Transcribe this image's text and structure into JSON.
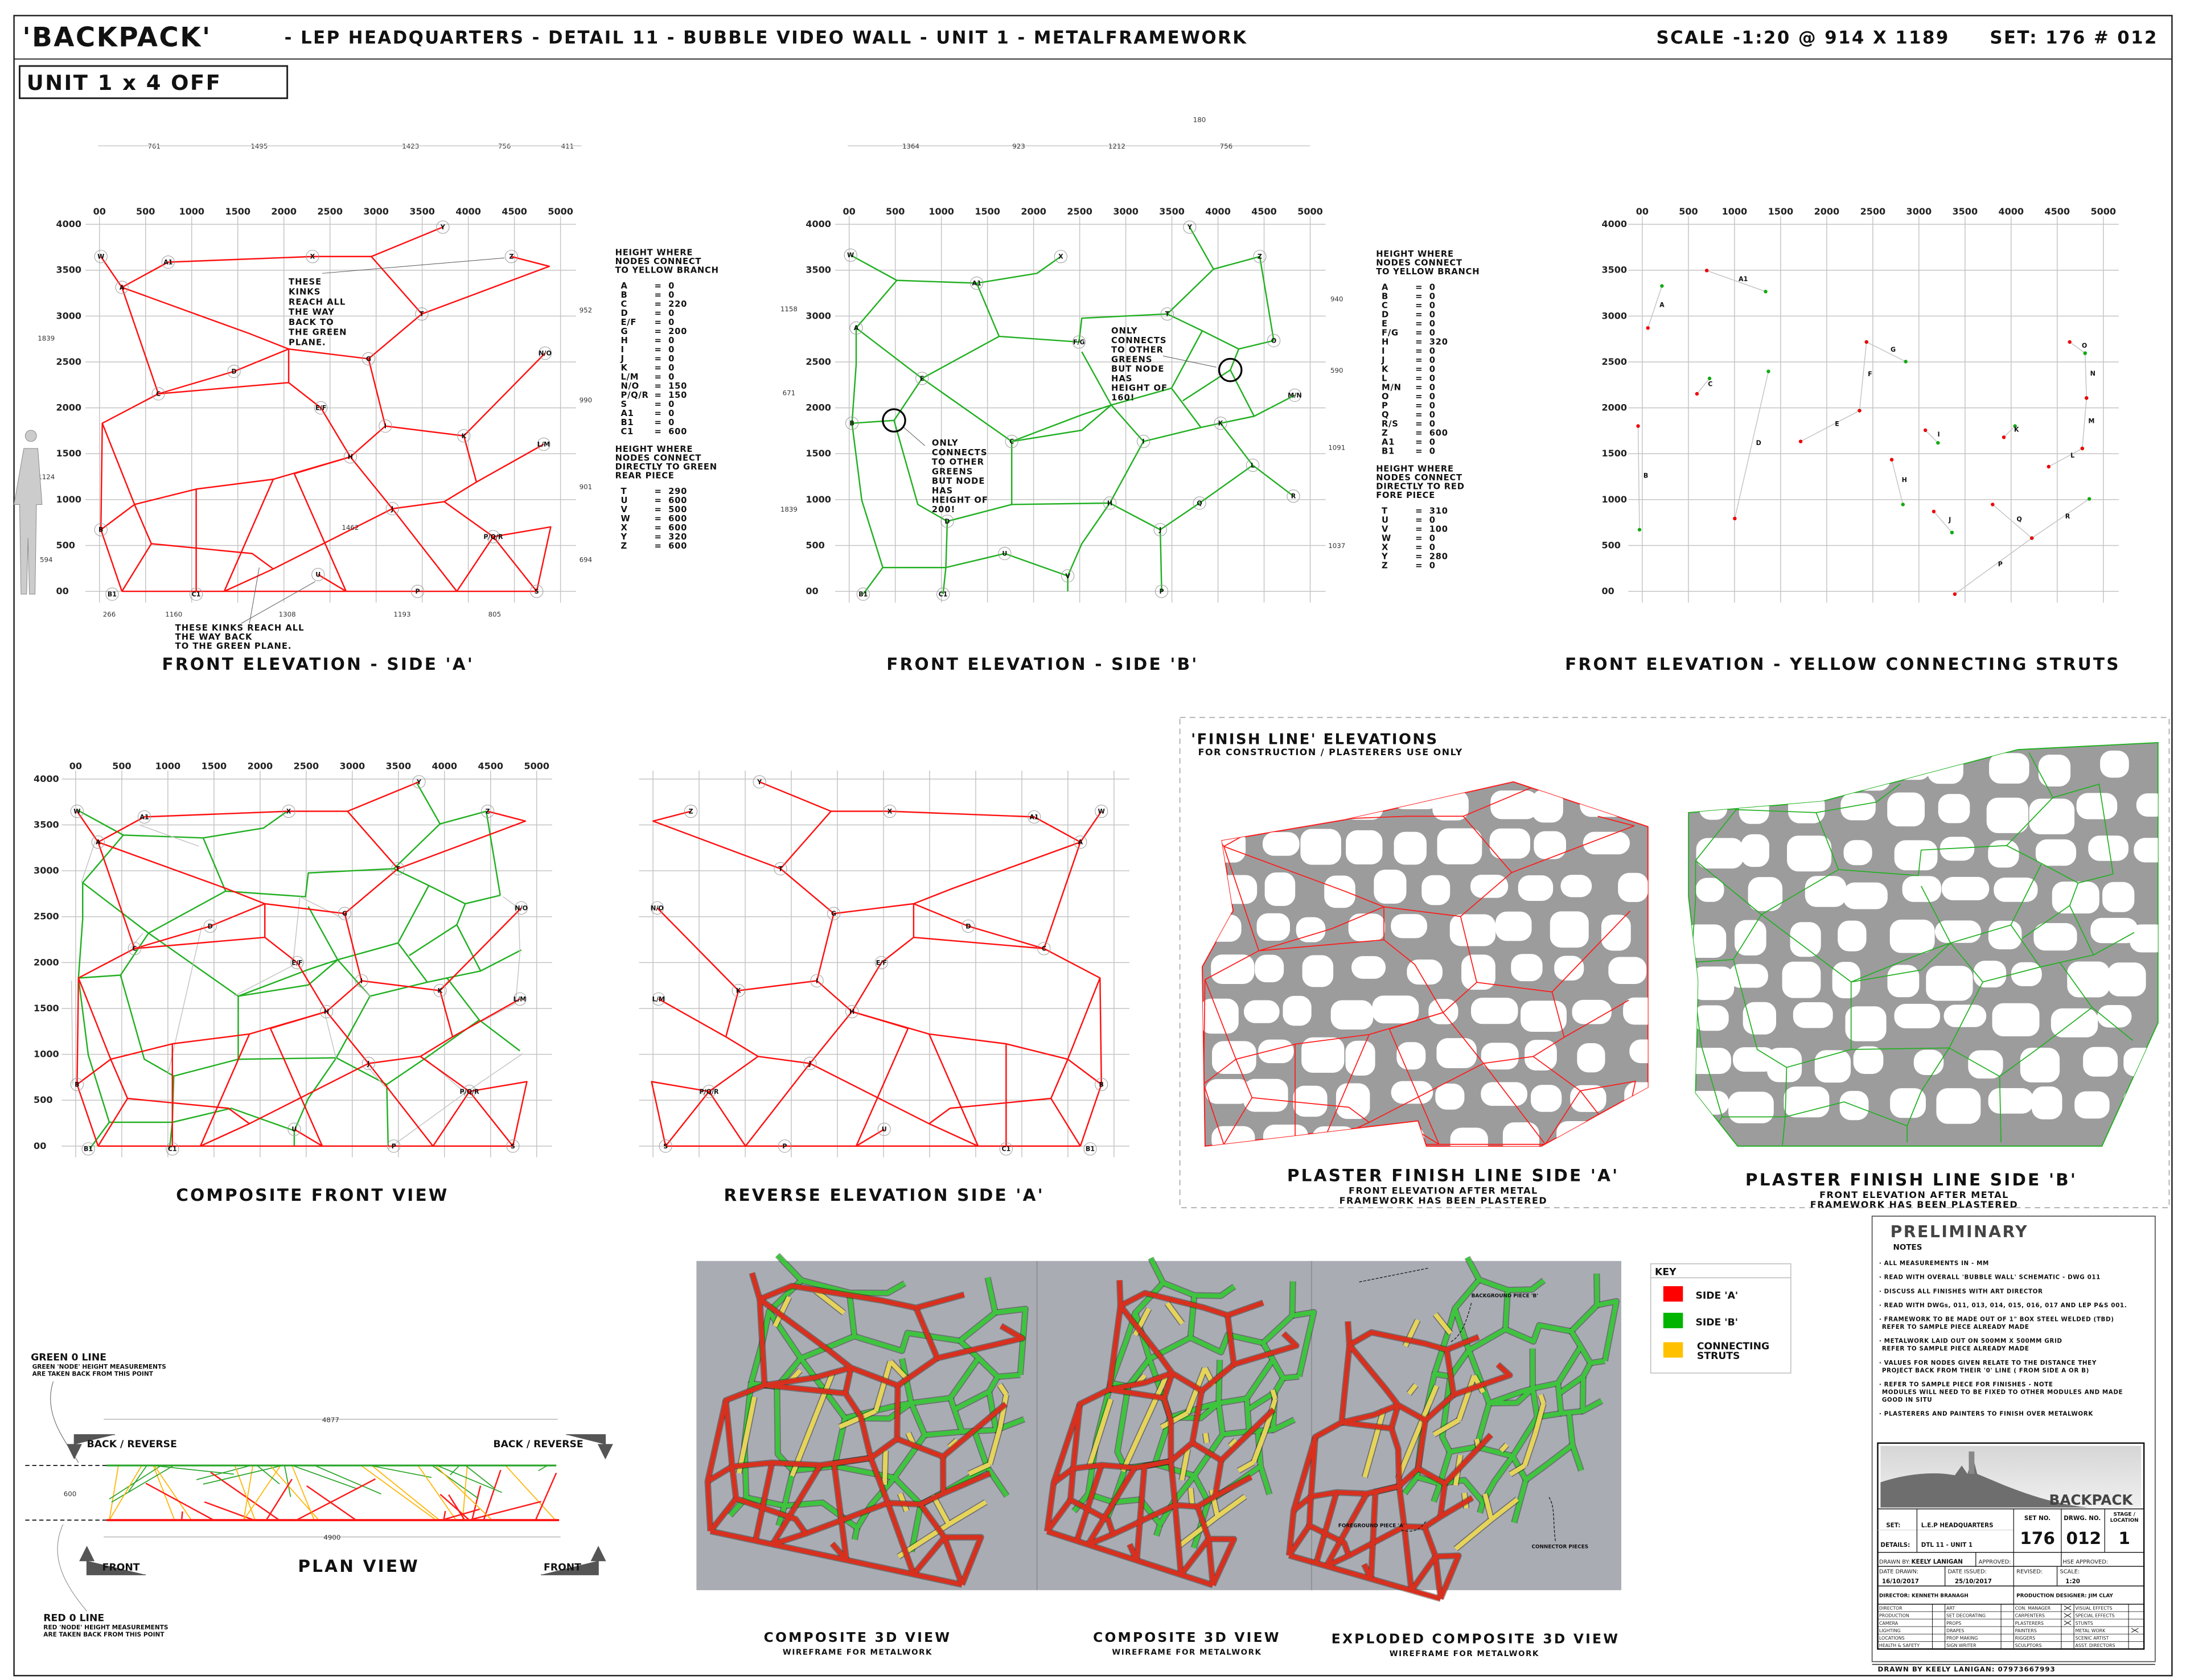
{
  "header": {
    "project": "'BACKPACK'",
    "title": "- LEP HEADQUARTERS - DETAIL 11 - BUBBLE VIDEO WALL - UNIT 1 - METALFRAMEWORK",
    "scale": "SCALE -1:20 @ 914  X  1189",
    "set": "SET: 176  # 012"
  },
  "unit_label": "UNIT 1 x 4 OFF",
  "grid": {
    "x_labels": [
      "00",
      "500",
      "1000",
      "1500",
      "2000",
      "2500",
      "3000",
      "3500",
      "4000",
      "4500",
      "5000"
    ],
    "y_labels": [
      "00",
      "500",
      "1000",
      "1500",
      "2000",
      "2500",
      "3000",
      "3500",
      "4000"
    ]
  },
  "side_a": {
    "caption": "FRONT ELEVATION -  SIDE 'A'",
    "dims_top": [
      "761",
      "1495",
      "1423",
      "756",
      "411"
    ],
    "dims_bottom": [
      "266",
      "1160",
      "1308",
      "1193",
      "805"
    ],
    "dims_left": [
      "1839",
      "1124",
      "594"
    ],
    "dims_right": [
      "952",
      "990",
      "901",
      "694"
    ],
    "dim_mid": "1462",
    "annotation_top": [
      "THESE",
      "KINKS",
      "REACH ALL",
      "THE WAY",
      "BACK TO",
      "THE GREEN",
      "PLANE."
    ],
    "annotation_bottom": [
      "THESE KINKS REACH ALL",
      "THE WAY BACK",
      "TO THE GREEN PLANE."
    ],
    "node_labels": [
      "W",
      "A",
      "A1",
      "X",
      "Y",
      "Z",
      "T",
      "G",
      "C",
      "E/F",
      "I",
      "K",
      "N/O",
      "L/M",
      "H",
      "J",
      "P/Q/R",
      "S",
      "P",
      "U",
      "B",
      "B1",
      "C1",
      "D"
    ],
    "table": {
      "yellow_heading": [
        "HEIGHT WHERE",
        "NODES CONNECT",
        "TO YELLOW BRANCH"
      ],
      "yellow": [
        [
          "A",
          "0"
        ],
        [
          "B",
          "0"
        ],
        [
          "C",
          "220"
        ],
        [
          "D",
          "0"
        ],
        [
          "E/F",
          "0"
        ],
        [
          "G",
          "200"
        ],
        [
          "H",
          "0"
        ],
        [
          "I",
          "0"
        ],
        [
          "J",
          "0"
        ],
        [
          "K",
          "0"
        ],
        [
          "L/M",
          "0"
        ],
        [
          "N/O",
          "150"
        ],
        [
          "P/Q/R",
          "150"
        ],
        [
          "S",
          "0"
        ],
        [
          "A1",
          "0"
        ],
        [
          "B1",
          "0"
        ],
        [
          "C1",
          "600"
        ]
      ],
      "other_heading": [
        "HEIGHT WHERE",
        "NODES CONNECT",
        "DIRECTLY TO GREEN",
        "REAR PIECE"
      ],
      "other": [
        [
          "T",
          "290"
        ],
        [
          "U",
          "600"
        ],
        [
          "V",
          "500"
        ],
        [
          "W",
          "600"
        ],
        [
          "X",
          "600"
        ],
        [
          "Y",
          "320"
        ],
        [
          "Z",
          "600"
        ]
      ]
    }
  },
  "side_b": {
    "caption": "FRONT ELEVATION -  SIDE 'B'",
    "dims_top": [
      "1364",
      "923",
      "1212",
      "756"
    ],
    "dim_offset": "180",
    "dims_left": [
      "1158",
      "671",
      "1839"
    ],
    "dims_right": [
      "940",
      "590",
      "1091",
      "1037"
    ],
    "annotation_left": [
      "ONLY",
      "CONNECTS",
      "TO OTHER",
      "GREENS",
      "BUT NODE",
      "HAS",
      "HEIGHT OF",
      "200!"
    ],
    "annotation_right": [
      "ONLY",
      "CONNECTS",
      "TO OTHER",
      "GREENS",
      "BUT NODE",
      "HAS",
      "HEIGHT OF",
      "160!"
    ],
    "node_labels": [
      "W",
      "X",
      "Y",
      "Z",
      "A1",
      "A",
      "T",
      "F/G",
      "O",
      "E",
      "M/N",
      "B",
      "K",
      "C",
      "I",
      "L",
      "R",
      "H",
      "Q",
      "J",
      "D",
      "V",
      "B1",
      "C1",
      "P",
      "U"
    ],
    "table": {
      "yellow_heading": [
        "HEIGHT WHERE",
        "NODES CONNECT",
        "TO YELLOW BRANCH"
      ],
      "yellow": [
        [
          "A",
          "0"
        ],
        [
          "B",
          "0"
        ],
        [
          "C",
          "0"
        ],
        [
          "D",
          "0"
        ],
        [
          "E",
          "0"
        ],
        [
          "F/G",
          "0"
        ],
        [
          "H",
          "320"
        ],
        [
          "I",
          "0"
        ],
        [
          "J",
          "0"
        ],
        [
          "K",
          "0"
        ],
        [
          "L",
          "0"
        ],
        [
          "M/N",
          "0"
        ],
        [
          "O",
          "0"
        ],
        [
          "P",
          "0"
        ],
        [
          "Q",
          "0"
        ],
        [
          "R/S",
          "0"
        ],
        [
          "Z",
          "600"
        ],
        [
          "A1",
          "0"
        ],
        [
          "B1",
          "0"
        ]
      ],
      "other_heading": [
        "HEIGHT WHERE",
        "NODES CONNECT",
        "DIRECTLY TO RED",
        "FORE PIECE"
      ],
      "other": [
        [
          "T",
          "310"
        ],
        [
          "U",
          "0"
        ],
        [
          "V",
          "100"
        ],
        [
          "W",
          "0"
        ],
        [
          "X",
          "0"
        ],
        [
          "Y",
          "280"
        ],
        [
          "Z",
          "0"
        ]
      ]
    }
  },
  "yellow_struts": {
    "caption": "FRONT ELEVATION -  YELLOW CONNECTING STRUTS",
    "labels": [
      "A",
      "A1",
      "B",
      "C",
      "D",
      "E",
      "F",
      "G",
      "H",
      "I",
      "J",
      "K",
      "L",
      "M",
      "N",
      "O",
      "P",
      "Q",
      "R"
    ]
  },
  "composite": {
    "caption": "COMPOSITE FRONT VIEW"
  },
  "reverse": {
    "caption": "REVERSE ELEVATION SIDE 'A'"
  },
  "finish": {
    "title": "'FINISH LINE' ELEVATIONS",
    "subtitle": "FOR CONSTRUCTION / PLASTERERS USE ONLY",
    "side_a": {
      "caption": "PLASTER FINISH LINE SIDE 'A'",
      "sub": [
        "FRONT ELEVATION AFTER METAL",
        "FRAMEWORK HAS BEEN PLASTERED"
      ]
    },
    "side_b": {
      "caption": "PLASTER FINISH LINE SIDE 'B'",
      "sub": [
        "FRONT ELEVATION AFTER METAL",
        "FRAMEWORK HAS BEEN PLASTERED"
      ]
    }
  },
  "plan": {
    "caption": "PLAN VIEW",
    "green_title": "GREEN 0 LINE",
    "green_note": [
      "GREEN 'NODE' HEIGHT MEASUREMENTS",
      "ARE TAKEN BACK FROM THIS POINT"
    ],
    "red_title": "RED 0 LINE",
    "red_note": [
      "RED 'NODE' HEIGHT MEASUREMENTS",
      "ARE TAKEN BACK FROM THIS POINT"
    ],
    "back_label": "BACK / REVERSE",
    "front_label": "FRONT",
    "dim_top": "4877",
    "dim_bottom": "4900",
    "dim_depth": "600"
  },
  "views3d": [
    {
      "caption": "COMPOSITE 3D VIEW",
      "sub": "WIREFRAME FOR METALWORK"
    },
    {
      "caption": "COMPOSITE 3D VIEW",
      "sub": "WIREFRAME FOR METALWORK"
    },
    {
      "caption": "EXPLODED COMPOSITE 3D VIEW",
      "sub": "WIREFRAME FOR METALWORK"
    }
  ],
  "view3d_annotations": {
    "background": "BACKGROUND PIECE 'B'",
    "foreground": "FOREGROUND PIECE 'A'",
    "connector": "CONNECTOR PIECES"
  },
  "key": {
    "title": "KEY",
    "items": [
      {
        "label": "SIDE 'A'",
        "color": "#ff0000"
      },
      {
        "label": "SIDE 'B'",
        "color": "#00b400"
      },
      {
        "label": "CONNECTING STRUTS",
        "color": "#ffc000"
      }
    ]
  },
  "notes": {
    "status": "PRELIMINARY",
    "heading": "NOTES",
    "items": [
      [
        "ALL MEASUREMENTS IN - MM"
      ],
      [
        "READ WITH OVERALL 'BUBBLE WALL' SCHEMATIC - DWG 011"
      ],
      [
        "DISCUSS ALL FINISHES WITH ART DIRECTOR"
      ],
      [
        "READ WITH DWGs, 011, 013, 014, 015, 016, 017 AND LEP P&S 001."
      ],
      [
        "FRAMEWORK TO BE MADE OUT OF 1\" BOX STEEL WELDED (TBD)",
        "REFER TO SAMPLE PIECE ALREADY MADE"
      ],
      [
        "METALWORK LAID OUT ON 500MM X 500MM GRID",
        "REFER TO SAMPLE PIECE ALREADY MADE"
      ],
      [
        "VALUES FOR NODES GIVEN RELATE TO THE DISTANCE THEY",
        "PROJECT BACK FROM THEIR '0' LINE ( FROM SIDE A OR B)"
      ],
      [
        "REFER TO SAMPLE PIECE FOR FINISHES - NOTE",
        "MODULES WILL NEED TO BE FIXED TO OTHER MODULES AND MADE",
        "GOOD IN SITU"
      ],
      [
        "PLASTERERS AND PAINTERS TO FINISH OVER METALWORK"
      ]
    ]
  },
  "title_block": {
    "logo_text": "BACKPACK",
    "set_label": "SET:",
    "set_value": "L.E.P HEADQUARTERS",
    "details_label": "DETAILS:",
    "details_value": "DTL 11 - UNIT 1",
    "set_no_label": "SET NO.",
    "set_no": "176",
    "drwg_no_label": "DRWG. NO.",
    "drwg_no": "012",
    "stage_label": "STAGE / LOCATION",
    "stage": "1",
    "drawn_by_label": "DRAWN BY:",
    "drawn_by": "KEELY LANIGAN",
    "approved_label": "APPROVED:",
    "hse_label": "HSE APPROVED:",
    "date_drawn_label": "DATE DRAWN:",
    "date_drawn": "16/10/2017",
    "date_issued_label": "DATE ISSUED:",
    "date_issued": "25/10/2017",
    "revised_label": "REVISED:",
    "scale_label": "SCALE:",
    "scale": "1:20",
    "director": "DIRECTOR: KENNETH BRANAGH",
    "designer": "PRODUCTION DESIGNER: JIM CLAY",
    "distribution": [
      [
        "DIRECTOR",
        "ART",
        "CON. MANAGER",
        "VISUAL EFFECTS"
      ],
      [
        "PRODUCTION",
        "SET DECORATING",
        "CARPENTERS",
        "SPECIAL EFFECTS"
      ],
      [
        "CAMERA",
        "PROPS",
        "PLASTERERS",
        "STUNTS"
      ],
      [
        "LIGHTING",
        "DRAPES",
        "PAINTERS",
        "METAL WORK"
      ],
      [
        "LOCATIONS",
        "PROP MAKING",
        "RIGGERS",
        "SCENIC ARTIST"
      ],
      [
        "HEALTH & SAFETY",
        "SIGN WRITER",
        "SCULPTORS",
        "ASST. DIRECTORS"
      ]
    ],
    "checked": [
      [
        false,
        false,
        true,
        false
      ],
      [
        false,
        false,
        true,
        false
      ],
      [
        false,
        false,
        true,
        false
      ],
      [
        false,
        false,
        false,
        true
      ],
      [
        false,
        false,
        false,
        false
      ],
      [
        false,
        false,
        false,
        false
      ]
    ],
    "footer": "DRAWN BY KEELY LANIGAN: 07973667993"
  }
}
